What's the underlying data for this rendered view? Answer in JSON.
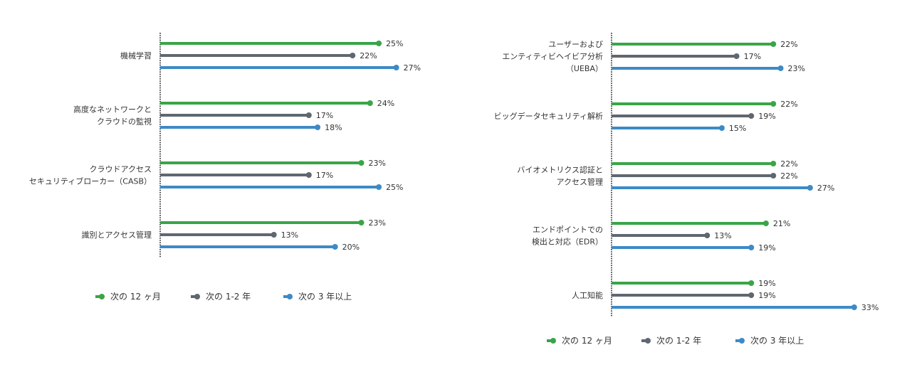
{
  "colors": {
    "next_12": "#3aa548",
    "next_1_2": "#5f6770",
    "next_3": "#3d8ac6",
    "axis": "#222222",
    "text": "#333333"
  },
  "chart_data": [
    {
      "type": "bar",
      "orientation": "horizontal",
      "style": "lollipop",
      "categories": [
        [
          "機械学習"
        ],
        [
          "高度なネットワークと",
          "クラウドの監視"
        ],
        [
          "クラウドアクセス",
          "セキュリティブローカー（CASB）"
        ],
        [
          "識別とアクセス管理"
        ]
      ],
      "series": [
        {
          "name": "次の 12 ヶ月",
          "color": "#3aa548",
          "values": [
            25,
            24,
            23,
            23
          ]
        },
        {
          "name": "次の 1-2 年",
          "color": "#5f6770",
          "values": [
            22,
            17,
            17,
            13
          ]
        },
        {
          "name": "次の 3 年以上",
          "color": "#3d8ac6",
          "values": [
            27,
            18,
            25,
            20
          ]
        }
      ],
      "value_suffix": "%",
      "xlim": [
        0,
        27.6
      ],
      "legend": "bottom"
    },
    {
      "type": "bar",
      "orientation": "horizontal",
      "style": "lollipop",
      "categories": [
        [
          "ユーザーおよび",
          "エンティティビヘイビア分析",
          "（UEBA）"
        ],
        [
          "ビッグデータセキュリティ解析"
        ],
        [
          "バイオメトリクス認証と",
          "アクセス管理"
        ],
        [
          "エンドポイントでの",
          "検出と対応（EDR）"
        ],
        [
          "人工知能"
        ]
      ],
      "series": [
        {
          "name": "次の 12 ヶ月",
          "color": "#3aa548",
          "values": [
            22,
            22,
            22,
            21,
            19
          ]
        },
        {
          "name": "次の 1-2 年",
          "color": "#5f6770",
          "values": [
            17,
            19,
            22,
            13,
            19
          ]
        },
        {
          "name": "次の 3 年以上",
          "color": "#3d8ac6",
          "values": [
            23,
            15,
            27,
            19,
            33
          ]
        }
      ],
      "value_suffix": "%",
      "xlim": [
        0,
        33.5
      ],
      "legend": "bottom"
    }
  ]
}
